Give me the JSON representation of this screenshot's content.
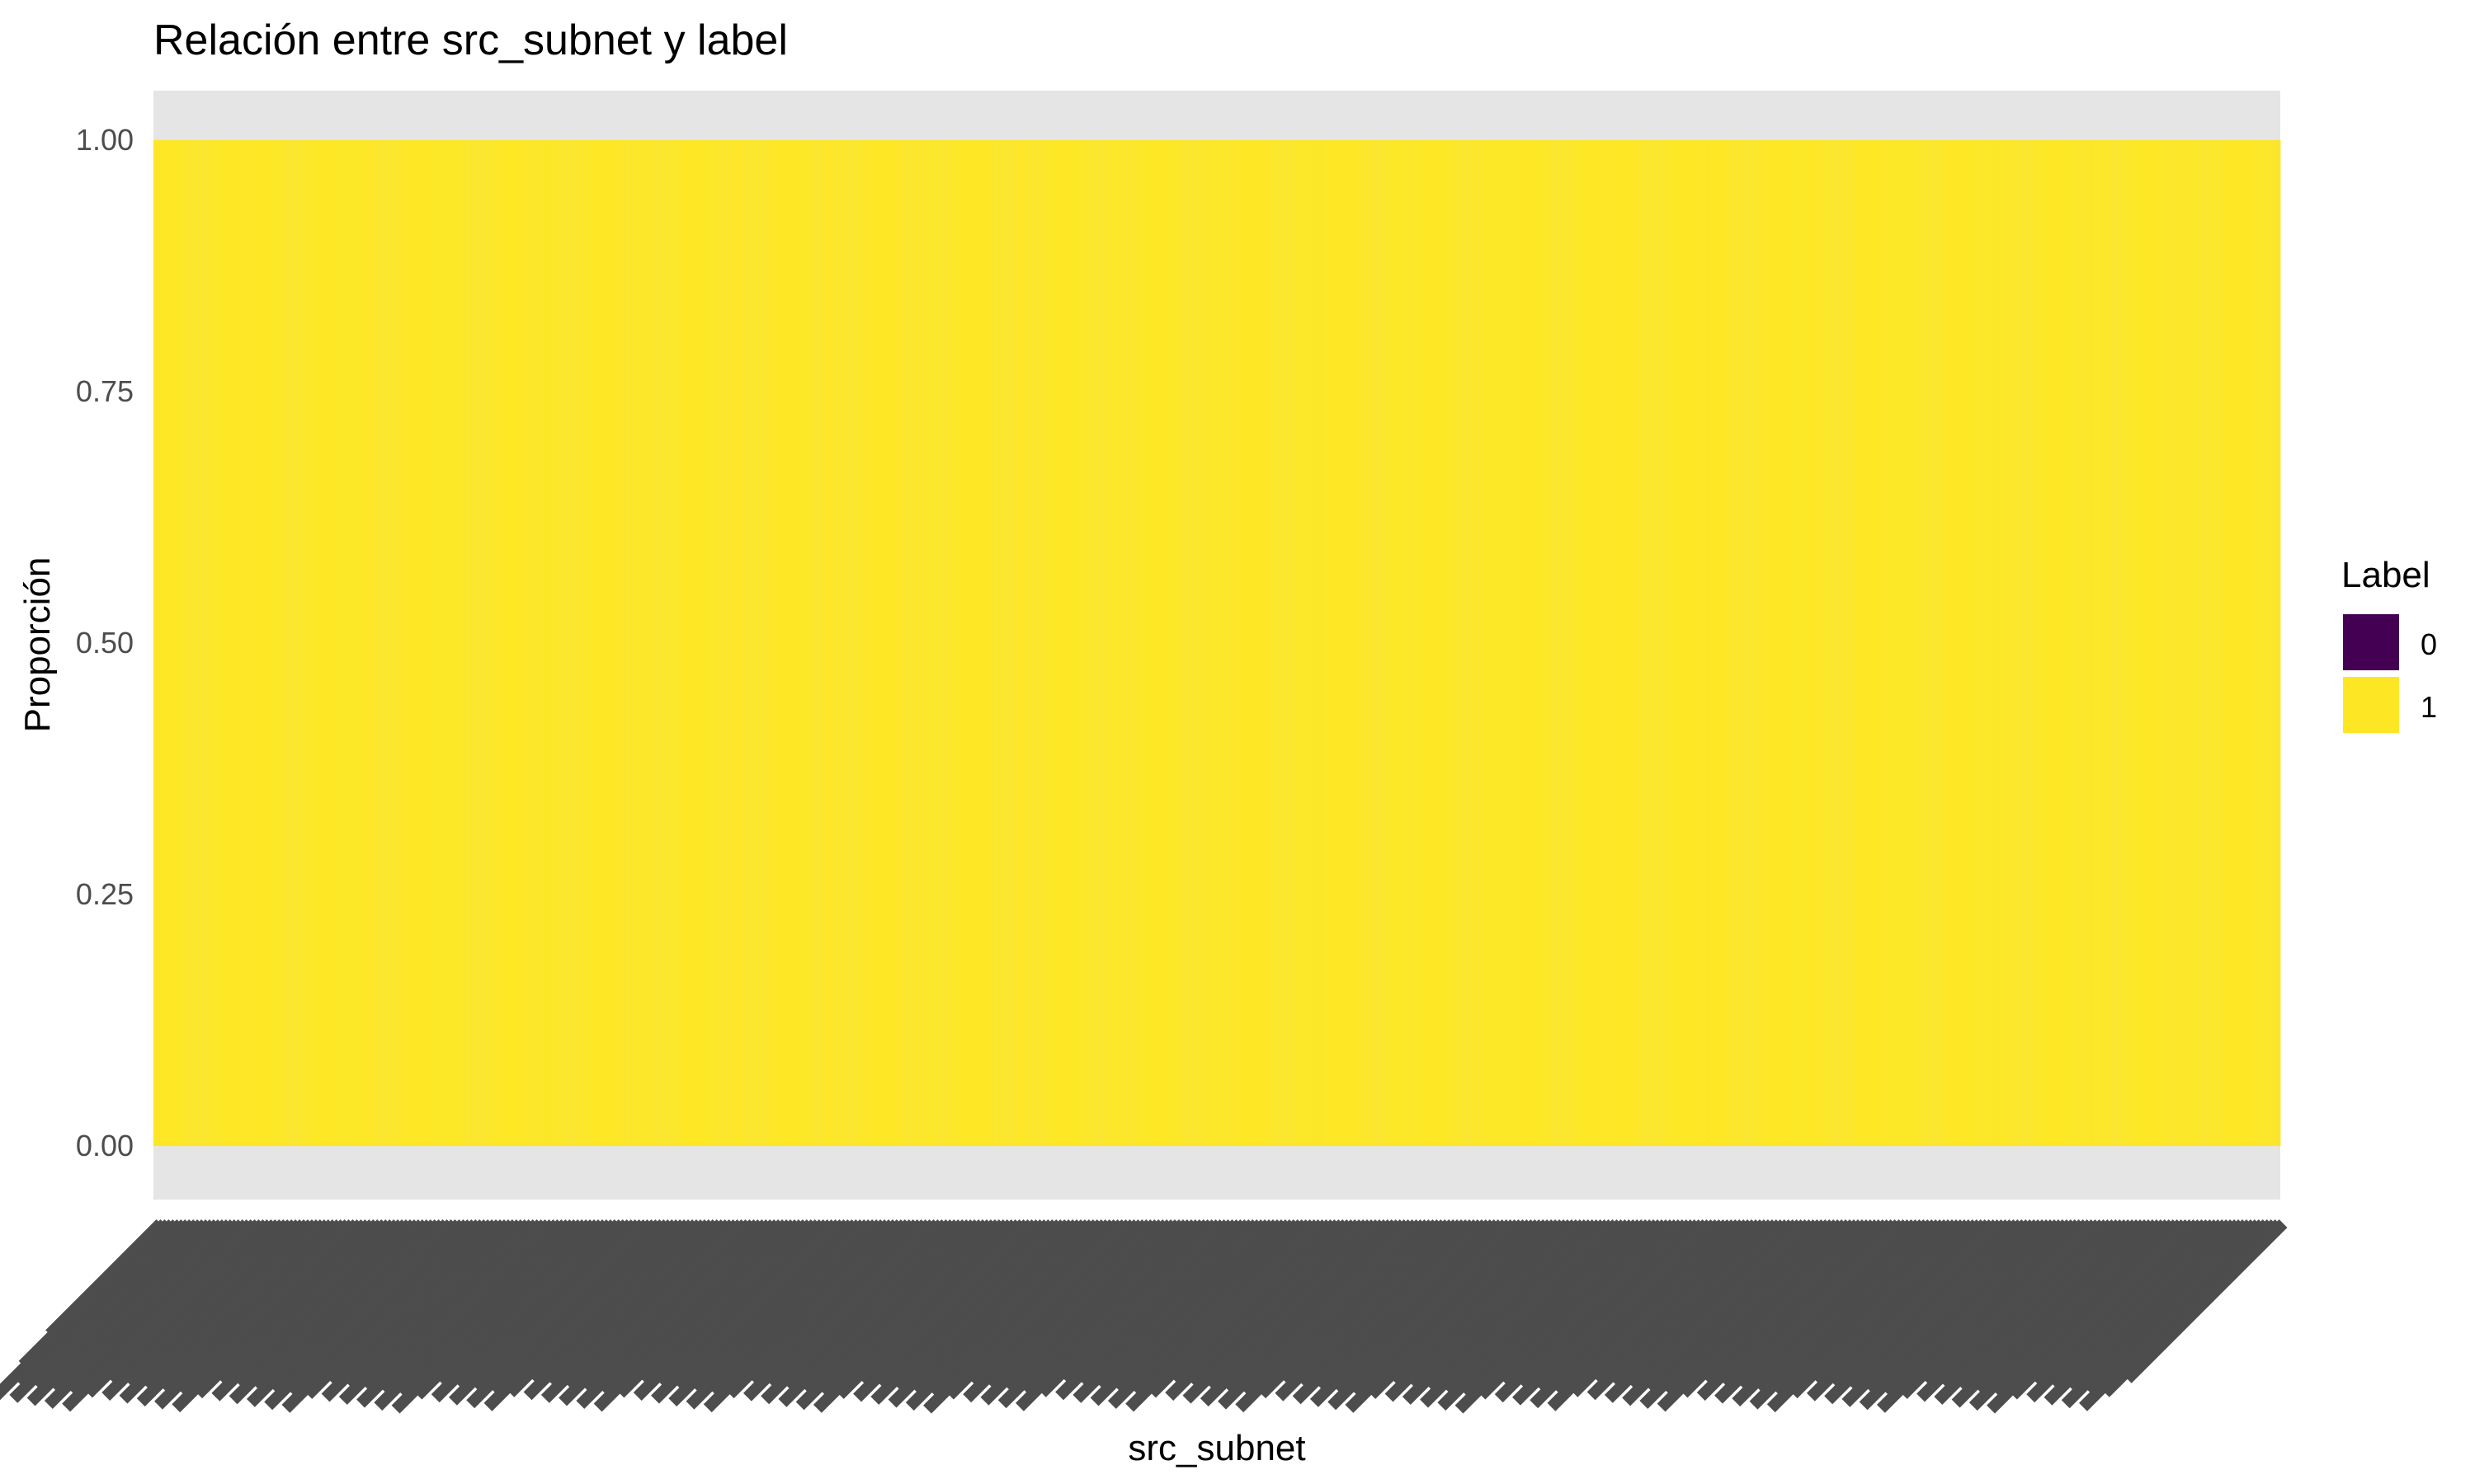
{
  "chart_data": {
    "type": "bar",
    "stacked": true,
    "title": "Relación entre src_subnet y label",
    "xlabel": "src_subnet",
    "ylabel": "Proporción",
    "ylim": [
      0,
      1
    ],
    "yticks": [
      "0.00",
      "0.25",
      "0.50",
      "0.75",
      "1.00"
    ],
    "grid": false,
    "x_tick_labels_legible": false,
    "x_tick_label_rotation_deg": 45,
    "category_count": 520,
    "series": [
      {
        "name": "0",
        "color": "#440154",
        "value_all_categories": 0
      },
      {
        "name": "1",
        "color": "#FDE725",
        "value_all_categories": 1
      }
    ],
    "legend": {
      "title": "Label",
      "position": "right",
      "entries": [
        {
          "label": "0",
          "color": "#440154"
        },
        {
          "label": "1",
          "color": "#FDE725"
        }
      ]
    },
    "panel_background": "#E5E5E5",
    "tick_text_color": "#4D4D4D"
  }
}
